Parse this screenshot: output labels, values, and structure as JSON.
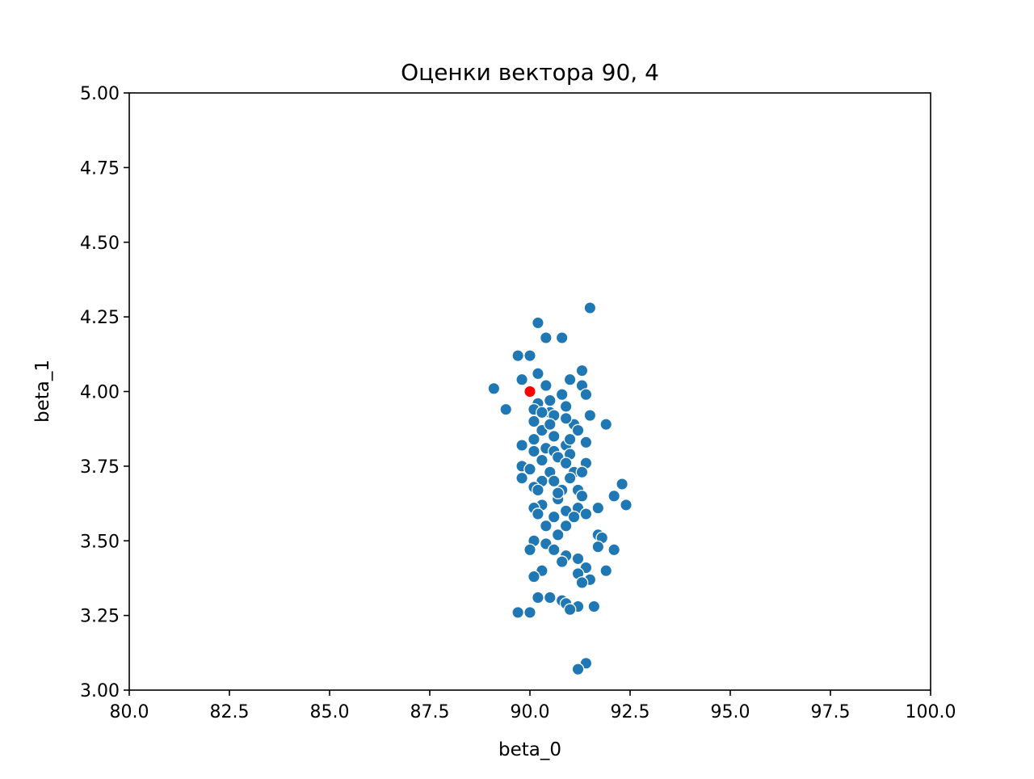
{
  "chart_data": {
    "type": "scatter",
    "title": "Оценки вектора 90, 4",
    "xlabel": "beta_0",
    "ylabel": "beta_1",
    "xlim": [
      80.0,
      100.0
    ],
    "ylim": [
      3.0,
      5.0
    ],
    "xticks": [
      "80.0",
      "82.5",
      "85.0",
      "87.5",
      "90.0",
      "92.5",
      "95.0",
      "97.5",
      "100.0"
    ],
    "yticks": [
      "3.00",
      "3.25",
      "3.50",
      "3.75",
      "4.00",
      "4.25",
      "4.50",
      "4.75",
      "5.00"
    ],
    "grid": false,
    "colors": {
      "estimates": "#1f77b4",
      "true_value": "#ff0000",
      "marker_edge": "#ffffff"
    },
    "series": [
      {
        "color": "#1f77b4",
        "points": [
          [
            91.5,
            4.28
          ],
          [
            90.2,
            4.23
          ],
          [
            90.4,
            4.18
          ],
          [
            90.8,
            4.18
          ],
          [
            89.7,
            4.12
          ],
          [
            90.0,
            4.12
          ],
          [
            91.3,
            4.07
          ],
          [
            90.2,
            4.06
          ],
          [
            89.8,
            4.04
          ],
          [
            91.0,
            4.04
          ],
          [
            90.4,
            4.02
          ],
          [
            91.3,
            4.02
          ],
          [
            89.1,
            4.01
          ],
          [
            90.8,
            3.99
          ],
          [
            91.4,
            3.99
          ],
          [
            90.5,
            3.97
          ],
          [
            90.2,
            3.96
          ],
          [
            90.9,
            3.95
          ],
          [
            89.4,
            3.94
          ],
          [
            90.1,
            3.94
          ],
          [
            90.5,
            3.93
          ],
          [
            90.6,
            3.92
          ],
          [
            91.5,
            3.92
          ],
          [
            90.1,
            3.9
          ],
          [
            91.1,
            3.89
          ],
          [
            91.9,
            3.89
          ],
          [
            90.3,
            3.87
          ],
          [
            91.2,
            3.87
          ],
          [
            90.6,
            3.85
          ],
          [
            90.1,
            3.84
          ],
          [
            91.4,
            3.83
          ],
          [
            89.8,
            3.82
          ],
          [
            90.9,
            3.82
          ],
          [
            90.4,
            3.81
          ],
          [
            90.6,
            3.8
          ],
          [
            90.1,
            3.8
          ],
          [
            91.0,
            3.79
          ],
          [
            90.7,
            3.78
          ],
          [
            90.3,
            3.77
          ],
          [
            91.4,
            3.76
          ],
          [
            90.9,
            3.76
          ],
          [
            89.8,
            3.75
          ],
          [
            90.0,
            3.74
          ],
          [
            90.5,
            3.73
          ],
          [
            91.1,
            3.73
          ],
          [
            91.3,
            3.73
          ],
          [
            89.8,
            3.71
          ],
          [
            90.3,
            3.7
          ],
          [
            90.6,
            3.7
          ],
          [
            92.3,
            3.69
          ],
          [
            90.1,
            3.68
          ],
          [
            90.8,
            3.67
          ],
          [
            91.2,
            3.67
          ],
          [
            91.3,
            3.65
          ],
          [
            92.1,
            3.65
          ],
          [
            90.7,
            3.64
          ],
          [
            92.4,
            3.62
          ],
          [
            90.3,
            3.62
          ],
          [
            90.1,
            3.61
          ],
          [
            91.7,
            3.61
          ],
          [
            91.2,
            3.61
          ],
          [
            90.9,
            3.6
          ],
          [
            91.4,
            3.59
          ],
          [
            90.2,
            3.59
          ],
          [
            90.6,
            3.58
          ],
          [
            91.1,
            3.58
          ],
          [
            90.9,
            3.55
          ],
          [
            90.7,
            3.52
          ],
          [
            91.7,
            3.52
          ],
          [
            91.8,
            3.51
          ],
          [
            90.1,
            3.5
          ],
          [
            90.4,
            3.49
          ],
          [
            91.7,
            3.48
          ],
          [
            90.0,
            3.47
          ],
          [
            90.6,
            3.47
          ],
          [
            92.1,
            3.47
          ],
          [
            90.9,
            3.45
          ],
          [
            91.2,
            3.44
          ],
          [
            90.8,
            3.43
          ],
          [
            91.4,
            3.41
          ],
          [
            90.3,
            3.4
          ],
          [
            91.9,
            3.4
          ],
          [
            91.2,
            3.39
          ],
          [
            90.1,
            3.38
          ],
          [
            91.5,
            3.37
          ],
          [
            91.3,
            3.36
          ],
          [
            90.2,
            3.31
          ],
          [
            90.5,
            3.31
          ],
          [
            90.8,
            3.3
          ],
          [
            90.9,
            3.29
          ],
          [
            91.2,
            3.28
          ],
          [
            91.6,
            3.28
          ],
          [
            91.0,
            3.27
          ],
          [
            89.7,
            3.26
          ],
          [
            90.0,
            3.26
          ],
          [
            91.4,
            3.09
          ],
          [
            91.2,
            3.07
          ],
          [
            90.7,
            3.66
          ],
          [
            90.3,
            3.93
          ],
          [
            90.9,
            3.91
          ],
          [
            90.5,
            3.89
          ],
          [
            91.0,
            3.71
          ],
          [
            90.4,
            3.55
          ],
          [
            90.2,
            3.67
          ],
          [
            91.0,
            3.84
          ]
        ]
      },
      {
        "color": "#ff0000",
        "points": [
          [
            90.0,
            4.0
          ]
        ]
      }
    ]
  }
}
